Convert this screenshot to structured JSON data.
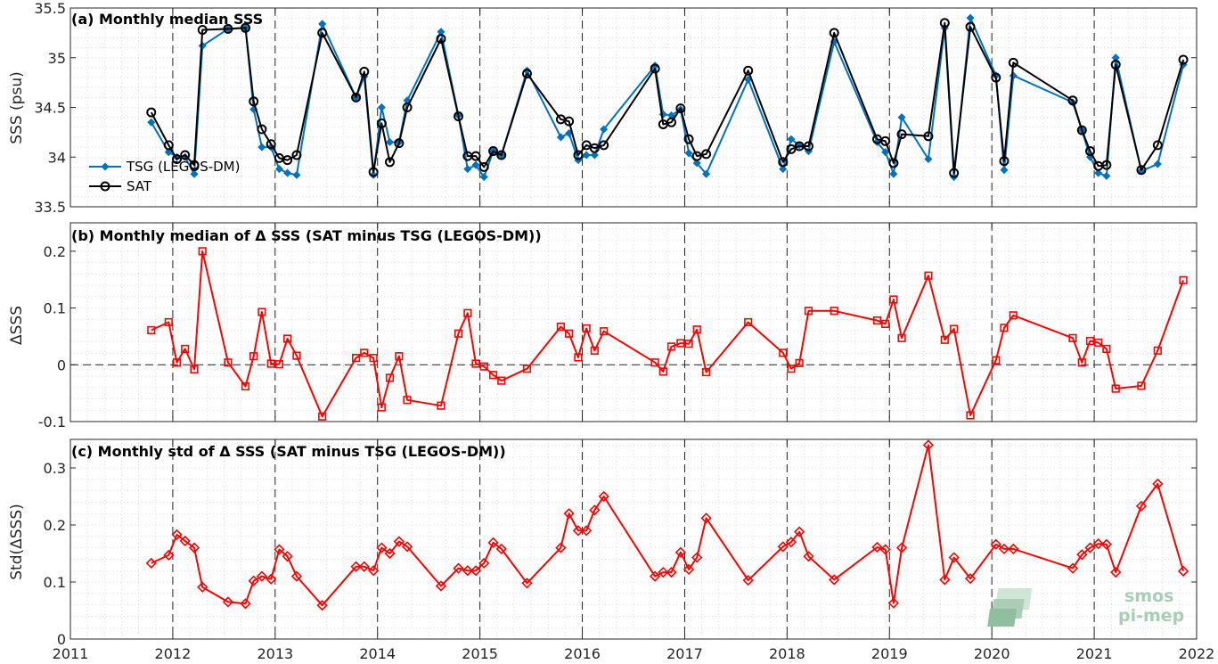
{
  "chart_data": [
    {
      "type": "line",
      "title": "(a) Monthly median SSS",
      "ylabel": "SSS (psu)",
      "ylim": [
        33.5,
        35.5
      ],
      "yticks": [
        "33.5",
        "34",
        "34.5",
        "35",
        "35.5"
      ],
      "legend_position": "bottom-left",
      "grid": true,
      "series": [
        {
          "name": "TSG (LEGOS-DM)",
          "color": "#0072BD",
          "marker": "diamond",
          "x": [
            2011.79,
            2011.96,
            2012.04,
            2012.12,
            2012.21,
            2012.29,
            2012.54,
            2012.71,
            2012.79,
            2012.87,
            2012.96,
            2013.04,
            2013.12,
            2013.21,
            2013.46,
            2013.79,
            2013.87,
            2013.96,
            2014.04,
            2014.12,
            2014.21,
            2014.29,
            2014.62,
            2014.79,
            2014.88,
            2014.96,
            2015.04,
            2015.13,
            2015.21,
            2015.46,
            2015.79,
            2015.87,
            2015.96,
            2016.04,
            2016.12,
            2016.21,
            2016.71,
            2016.79,
            2016.87,
            2016.96,
            2017.04,
            2017.12,
            2017.21,
            2017.62,
            2017.96,
            2018.04,
            2018.12,
            2018.21,
            2018.46,
            2018.88,
            2018.96,
            2019.04,
            2019.12,
            2019.38,
            2019.54,
            2019.63,
            2019.79,
            2020.04,
            2020.12,
            2020.21,
            2020.79,
            2020.88,
            2020.96,
            2021.04,
            2021.12,
            2021.21,
            2021.46,
            2021.62,
            2021.87
          ],
          "y": [
            34.35,
            34.05,
            34.0,
            34.0,
            33.83,
            35.12,
            35.29,
            35.3,
            34.48,
            34.1,
            34.1,
            33.88,
            33.84,
            33.82,
            35.34,
            34.6,
            34.81,
            33.82,
            34.5,
            34.15,
            34.15,
            34.57,
            35.26,
            34.42,
            33.88,
            33.92,
            33.8,
            34.06,
            34.02,
            34.87,
            34.2,
            34.24,
            33.97,
            34.02,
            34.02,
            34.28,
            34.92,
            34.43,
            34.42,
            34.48,
            34.04,
            33.94,
            33.83,
            34.78,
            33.88,
            34.18,
            34.12,
            34.06,
            35.16,
            34.15,
            34.05,
            33.83,
            34.4,
            33.98,
            35.3,
            33.8,
            35.4,
            34.82,
            33.87,
            34.82,
            34.55,
            34.27,
            34.0,
            33.84,
            33.81,
            35.0,
            33.86,
            33.93,
            34.93
          ]
        },
        {
          "name": "SAT",
          "color": "#000000",
          "marker": "circle",
          "x": [
            2011.79,
            2011.96,
            2012.04,
            2012.12,
            2012.21,
            2012.29,
            2012.54,
            2012.71,
            2012.79,
            2012.87,
            2012.96,
            2013.04,
            2013.12,
            2013.21,
            2013.46,
            2013.79,
            2013.87,
            2013.96,
            2014.04,
            2014.12,
            2014.21,
            2014.29,
            2014.62,
            2014.79,
            2014.88,
            2014.96,
            2015.04,
            2015.13,
            2015.21,
            2015.46,
            2015.79,
            2015.87,
            2015.96,
            2016.04,
            2016.12,
            2016.21,
            2016.71,
            2016.79,
            2016.87,
            2016.96,
            2017.04,
            2017.12,
            2017.21,
            2017.62,
            2017.96,
            2018.04,
            2018.12,
            2018.21,
            2018.46,
            2018.88,
            2018.96,
            2019.04,
            2019.12,
            2019.38,
            2019.54,
            2019.63,
            2019.79,
            2020.04,
            2020.12,
            2020.21,
            2020.79,
            2020.88,
            2020.96,
            2021.04,
            2021.12,
            2021.21,
            2021.46,
            2021.62,
            2021.87
          ],
          "y": [
            34.45,
            34.12,
            33.98,
            34.02,
            33.92,
            35.28,
            35.29,
            35.3,
            34.56,
            34.28,
            34.13,
            33.99,
            33.97,
            34.02,
            35.25,
            34.6,
            34.86,
            33.85,
            34.34,
            33.95,
            34.14,
            34.5,
            35.19,
            34.41,
            34.01,
            34.01,
            33.9,
            34.06,
            34.02,
            34.84,
            34.38,
            34.36,
            34.02,
            34.12,
            34.09,
            34.12,
            34.89,
            34.33,
            34.35,
            34.49,
            34.18,
            34.01,
            34.03,
            34.87,
            33.95,
            34.08,
            34.11,
            34.11,
            35.25,
            34.18,
            34.16,
            33.94,
            34.23,
            34.21,
            35.35,
            33.84,
            35.31,
            34.8,
            33.96,
            34.95,
            34.57,
            34.27,
            34.06,
            33.91,
            33.92,
            34.93,
            33.87,
            34.12,
            34.98
          ]
        }
      ]
    },
    {
      "type": "line",
      "title": "(b) Monthly median of Δ SSS (SAT minus TSG (LEGOS-DM))",
      "ylabel": "ΔSSS",
      "ylim": [
        -0.1,
        0.25
      ],
      "yticks": [
        "-0.1",
        "0",
        "0.1",
        "0.2"
      ],
      "grid": true,
      "zero_line": true,
      "series": [
        {
          "color": "#FF0000",
          "marker": "square",
          "x": [
            2011.79,
            2011.96,
            2012.04,
            2012.12,
            2012.21,
            2012.29,
            2012.54,
            2012.71,
            2012.79,
            2012.87,
            2012.96,
            2013.04,
            2013.12,
            2013.21,
            2013.46,
            2013.79,
            2013.87,
            2013.96,
            2014.04,
            2014.12,
            2014.21,
            2014.29,
            2014.62,
            2014.79,
            2014.88,
            2014.96,
            2015.04,
            2015.13,
            2015.21,
            2015.46,
            2015.79,
            2015.87,
            2015.96,
            2016.04,
            2016.12,
            2016.21,
            2016.71,
            2016.79,
            2016.87,
            2016.96,
            2017.04,
            2017.12,
            2017.21,
            2017.62,
            2017.96,
            2018.04,
            2018.12,
            2018.21,
            2018.46,
            2018.88,
            2018.96,
            2019.04,
            2019.12,
            2019.38,
            2019.54,
            2019.63,
            2019.79,
            2020.04,
            2020.12,
            2020.21,
            2020.79,
            2020.88,
            2020.96,
            2021.04,
            2021.12,
            2021.21,
            2021.46,
            2021.62,
            2021.87
          ],
          "y": [
            0.061,
            0.075,
            0.004,
            0.028,
            -0.008,
            0.2,
            0.004,
            -0.038,
            0.015,
            0.093,
            0.002,
            0.001,
            0.046,
            0.016,
            -0.091,
            0.012,
            0.021,
            0.012,
            -0.075,
            -0.023,
            0.015,
            -0.062,
            -0.072,
            0.055,
            0.091,
            0.002,
            -0.003,
            -0.018,
            -0.028,
            -0.007,
            0.067,
            0.055,
            0.013,
            0.064,
            0.025,
            0.059,
            0.004,
            -0.012,
            0.032,
            0.038,
            0.037,
            0.062,
            -0.013,
            0.075,
            0.021,
            -0.007,
            0.003,
            0.095,
            0.095,
            0.078,
            0.072,
            0.115,
            0.047,
            0.157,
            0.044,
            0.063,
            -0.089,
            0.008,
            0.065,
            0.087,
            0.047,
            0.004,
            0.042,
            0.039,
            0.028,
            -0.042,
            -0.037,
            0.025,
            0.149
          ]
        }
      ]
    },
    {
      "type": "line",
      "title": "(c) Monthly std of Δ SSS (SAT minus TSG (LEGOS-DM))",
      "ylabel": "Std(ΔSSS)",
      "ylim": [
        0,
        0.35
      ],
      "yticks": [
        "0",
        "0.1",
        "0.2",
        "0.3"
      ],
      "xticks": [
        "2011",
        "2012",
        "2013",
        "2014",
        "2015",
        "2016",
        "2017",
        "2018",
        "2019",
        "2020",
        "2021",
        "2022"
      ],
      "xlim": [
        2011,
        2022
      ],
      "grid": true,
      "series": [
        {
          "color": "#FF0000",
          "marker": "diamond",
          "x": [
            2011.79,
            2011.96,
            2012.04,
            2012.12,
            2012.21,
            2012.29,
            2012.54,
            2012.71,
            2012.79,
            2012.87,
            2012.96,
            2013.04,
            2013.12,
            2013.21,
            2013.46,
            2013.79,
            2013.87,
            2013.96,
            2014.04,
            2014.12,
            2014.21,
            2014.29,
            2014.62,
            2014.79,
            2014.88,
            2014.96,
            2015.04,
            2015.13,
            2015.21,
            2015.46,
            2015.79,
            2015.87,
            2015.96,
            2016.04,
            2016.12,
            2016.21,
            2016.71,
            2016.79,
            2016.87,
            2016.96,
            2017.04,
            2017.12,
            2017.21,
            2017.62,
            2017.96,
            2018.04,
            2018.12,
            2018.21,
            2018.46,
            2018.88,
            2018.96,
            2019.04,
            2019.12,
            2019.38,
            2019.54,
            2019.63,
            2019.79,
            2020.04,
            2020.12,
            2020.21,
            2020.79,
            2020.88,
            2020.96,
            2021.04,
            2021.12,
            2021.21,
            2021.46,
            2021.62,
            2021.87
          ],
          "y": [
            0.133,
            0.147,
            0.183,
            0.172,
            0.16,
            0.091,
            0.065,
            0.062,
            0.102,
            0.11,
            0.105,
            0.157,
            0.145,
            0.11,
            0.059,
            0.127,
            0.127,
            0.12,
            0.16,
            0.15,
            0.171,
            0.162,
            0.093,
            0.124,
            0.12,
            0.12,
            0.133,
            0.169,
            0.158,
            0.098,
            0.16,
            0.22,
            0.19,
            0.19,
            0.226,
            0.25,
            0.11,
            0.117,
            0.117,
            0.152,
            0.122,
            0.143,
            0.212,
            0.103,
            0.162,
            0.17,
            0.188,
            0.145,
            0.104,
            0.161,
            0.157,
            0.063,
            0.16,
            0.34,
            0.104,
            0.143,
            0.106,
            0.166,
            0.158,
            0.158,
            0.124,
            0.148,
            0.16,
            0.167,
            0.166,
            0.117,
            0.233,
            0.272,
            0.119
          ]
        }
      ]
    }
  ],
  "watermark": {
    "line1": "smos",
    "line2": "pi-mep",
    "color": "#a9cdb5"
  }
}
